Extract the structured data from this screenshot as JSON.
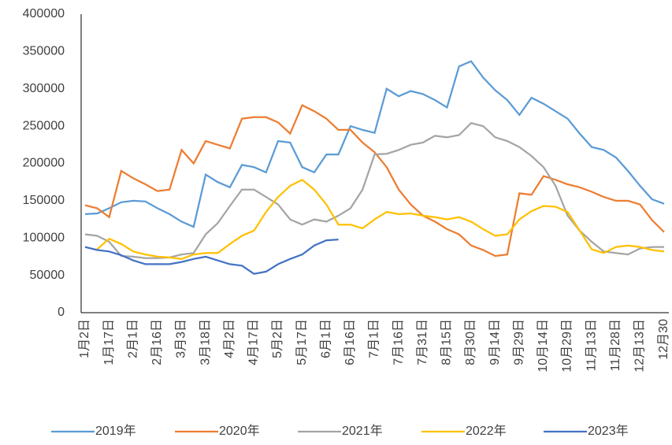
{
  "chart_data": {
    "type": "line",
    "categories": [
      "1月2日",
      null,
      "1月17日",
      null,
      "2月1日",
      null,
      "2月16日",
      null,
      "3月3日",
      null,
      "3月18日",
      null,
      "4月2日",
      null,
      "4月17日",
      null,
      "5月2日",
      null,
      "5月17日",
      null,
      "6月1日",
      null,
      "6月16日",
      null,
      "7月1日",
      null,
      "7月16日",
      null,
      "7月31日",
      null,
      "8月15日",
      null,
      "8月30日",
      null,
      "9月14日",
      null,
      "9月29日",
      null,
      "10月14日",
      null,
      "10月29日",
      null,
      "11月13日",
      null,
      "11月28日",
      null,
      "12月13日",
      null,
      "12月30"
    ],
    "series": [
      {
        "name": "2019年",
        "color": "#5b9bd5",
        "values": [
          132000,
          133000,
          140000,
          148000,
          150000,
          149000,
          140000,
          132000,
          122000,
          115000,
          185000,
          175000,
          168000,
          198000,
          195000,
          188000,
          230000,
          228000,
          195000,
          188000,
          212000,
          212000,
          250000,
          245000,
          241000,
          300000,
          290000,
          297000,
          293000,
          285000,
          275000,
          330000,
          337000,
          315000,
          298000,
          285000,
          265000,
          288000,
          280000,
          270000,
          260000,
          240000,
          222000,
          218000,
          208000,
          190000,
          170000,
          152000,
          146000
        ]
      },
      {
        "name": "2020年",
        "color": "#ed7d31",
        "values": [
          144000,
          140000,
          128000,
          190000,
          180000,
          172000,
          163000,
          165000,
          218000,
          200000,
          230000,
          225000,
          220000,
          260000,
          262000,
          262000,
          255000,
          240000,
          278000,
          270000,
          260000,
          245000,
          245000,
          228000,
          215000,
          195000,
          165000,
          145000,
          130000,
          122000,
          112000,
          105000,
          90000,
          84000,
          76000,
          78000,
          160000,
          158000,
          183000,
          178000,
          172000,
          168000,
          162000,
          155000,
          150000,
          150000,
          145000,
          124000,
          108000
        ]
      },
      {
        "name": "2021年",
        "color": "#a5a5a5",
        "values": [
          105000,
          103000,
          95000,
          76000,
          75000,
          73000,
          73000,
          74000,
          78000,
          80000,
          105000,
          120000,
          143000,
          165000,
          165000,
          155000,
          145000,
          125000,
          118000,
          125000,
          122000,
          130000,
          140000,
          165000,
          212000,
          213000,
          218000,
          225000,
          228000,
          237000,
          235000,
          238000,
          254000,
          250000,
          235000,
          230000,
          222000,
          210000,
          195000,
          170000,
          130000,
          110000,
          95000,
          82000,
          80000,
          78000,
          86000,
          88000,
          88000
        ]
      },
      {
        "name": "2022年",
        "color": "#ffc000",
        "values": [
          null,
          85000,
          99000,
          92000,
          82000,
          78000,
          75000,
          74000,
          72000,
          78000,
          80000,
          80000,
          92000,
          103000,
          110000,
          135000,
          155000,
          170000,
          178000,
          165000,
          145000,
          118000,
          118000,
          113000,
          125000,
          135000,
          132000,
          133000,
          130000,
          128000,
          125000,
          128000,
          122000,
          112000,
          103000,
          105000,
          125000,
          136000,
          143000,
          142000,
          135000,
          110000,
          85000,
          80000,
          88000,
          90000,
          88000,
          84000,
          82000
        ]
      },
      {
        "name": "2023年",
        "color": "#4472c4",
        "values": [
          88000,
          84000,
          82000,
          77000,
          70000,
          65000,
          65000,
          65000,
          68000,
          72000,
          75000,
          70000,
          65000,
          63000,
          52000,
          55000,
          65000,
          72000,
          78000,
          90000,
          97000,
          98000,
          null,
          null,
          null,
          null,
          null,
          null,
          null,
          null,
          null,
          null,
          null,
          null,
          null,
          null,
          null,
          null,
          null,
          null,
          null,
          null,
          null,
          null,
          null,
          null,
          null,
          null,
          null
        ]
      }
    ],
    "ylim": [
      0,
      400000
    ],
    "yticks": [
      0,
      50000,
      100000,
      150000,
      200000,
      250000,
      300000,
      350000,
      400000
    ],
    "grid": false
  }
}
